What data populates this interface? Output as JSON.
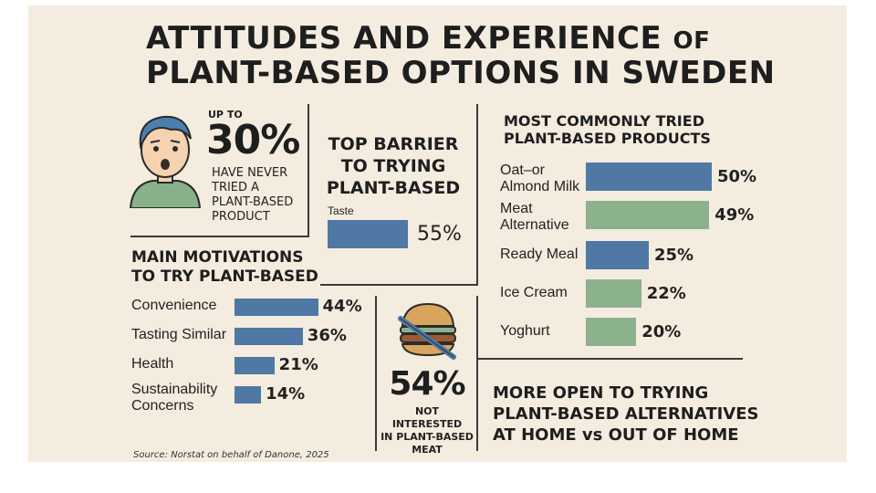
{
  "title": {
    "line1": "ATTITUDES AND EXPERIENCE",
    "of": "OF",
    "line2": "PLANT-BASED OPTIONS IN SWEDEN"
  },
  "never_tried": {
    "up_to": "UP TO",
    "percent": "30%",
    "text": [
      "HAVE NEVER",
      "TRIED A",
      "PLANT-BASED",
      "PRODUCT"
    ]
  },
  "top_barrier": {
    "heading": [
      "TOP BARRIER",
      "TO TRYING",
      "PLANT-BASED"
    ]
  },
  "motivations": {
    "heading": [
      "MAIN MOTIVATIONS",
      "TO TRY PLANT-BASED"
    ]
  },
  "products": {
    "heading": [
      "MOST COMMONLY TRIED",
      "PLANT-BASED PRODUCTS"
    ]
  },
  "meat": {
    "percent": "54%",
    "text": [
      "NOT INTERESTED",
      "IN PLANT-BASED",
      "MEAT"
    ]
  },
  "home": {
    "text": [
      "MORE OPEN TO TRYING",
      "PLANT-BASED ALTERNATIVES",
      "AT HOME vs OUT OF HOME"
    ]
  },
  "source": "Source: Norstat on behalf of Danone, 2025",
  "colors": {
    "blue": "#4f79a4",
    "green": "#8cb28d",
    "background": "#f4ecdf"
  },
  "icons": [
    "worried-person-icon",
    "burger-crossed-icon"
  ],
  "chart_data": [
    {
      "type": "bar",
      "orientation": "horizontal",
      "title": "TOP BARRIER TO TRYING PLANT-BASED",
      "categories": [
        "Taste"
      ],
      "values": [
        55
      ],
      "labels": [
        "55%"
      ],
      "xlim": [
        0,
        100
      ]
    },
    {
      "type": "bar",
      "orientation": "horizontal",
      "title": "MAIN MOTIVATIONS TO TRY PLANT-BASED",
      "categories": [
        "Convenience",
        "Tasting Similar",
        "Health",
        "Sustainability Concerns"
      ],
      "category_lines": [
        [
          "Convenience"
        ],
        [
          "Tasting Similar"
        ],
        [
          "Health"
        ],
        [
          "Sustainability",
          "Concerns"
        ]
      ],
      "values": [
        44,
        36,
        21,
        14
      ],
      "labels": [
        "44%",
        "36%",
        "21%",
        "14%"
      ],
      "xlim": [
        0,
        100
      ]
    },
    {
      "type": "bar",
      "orientation": "horizontal",
      "title": "MOST COMMONLY TRIED PLANT-BASED PRODUCTS",
      "categories": [
        "Oat–or Almond Milk",
        "Meat Alternative",
        "Ready Meal",
        "Ice Cream",
        "Yoghurt"
      ],
      "category_lines": [
        [
          "Oat–or",
          "Almond Milk"
        ],
        [
          "Meat",
          "Alternative"
        ],
        [
          "Ready Meal"
        ],
        [
          "Ice Cream"
        ],
        [
          "Yoghurt"
        ]
      ],
      "values": [
        50,
        49,
        25,
        22,
        20
      ],
      "labels": [
        "50%",
        "49%",
        "25%",
        "22%",
        "20%"
      ],
      "bar_colors": [
        "blue",
        "green",
        "blue",
        "green",
        "green"
      ],
      "xlim": [
        0,
        100
      ]
    }
  ]
}
